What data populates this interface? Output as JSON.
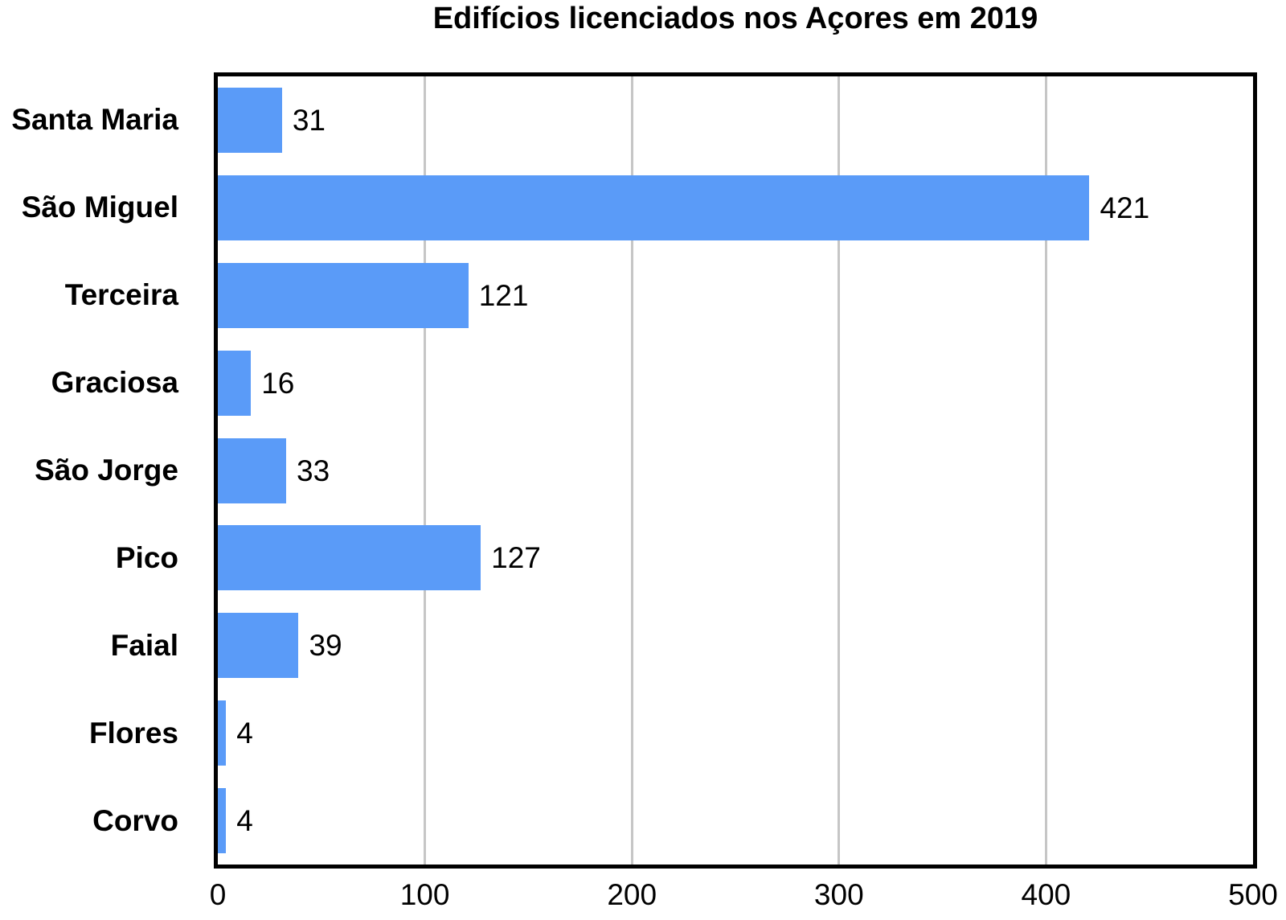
{
  "title": "Edifícios licenciados nos Açores em 2019",
  "colors": {
    "bar": "#5A9BF8",
    "grid": "#c6c6c6",
    "axis": "#000000",
    "text": "#000000",
    "background": "#ffffff"
  },
  "chart_data": {
    "type": "bar",
    "orientation": "horizontal",
    "title": "Edifícios licenciados nos Açores em 2019",
    "categories": [
      "Santa Maria",
      "São Miguel",
      "Terceira",
      "Graciosa",
      "São Jorge",
      "Pico",
      "Faial",
      "Flores",
      "Corvo"
    ],
    "values": [
      31,
      421,
      121,
      16,
      33,
      127,
      39,
      4,
      4
    ],
    "data_labels": [
      "31",
      "421",
      "121",
      "16",
      "33",
      "127",
      "39",
      "4",
      "4"
    ],
    "xlabel": "",
    "ylabel": "",
    "xlim": [
      0,
      500
    ],
    "xticks": [
      0,
      100,
      200,
      300,
      400,
      500
    ],
    "xtick_labels": [
      "0",
      "100",
      "200",
      "300",
      "400",
      "500"
    ],
    "grid": true,
    "legend": false
  }
}
